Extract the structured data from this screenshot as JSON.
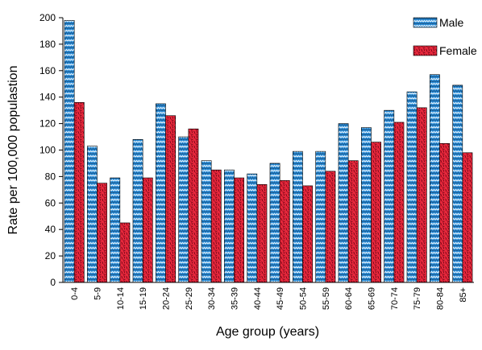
{
  "chart_data": {
    "type": "bar",
    "title": "",
    "xlabel": "Age group (years)",
    "ylabel": "Rate per 100,000 populastion",
    "ylim": [
      0,
      200
    ],
    "yticks": [
      0,
      20,
      40,
      60,
      80,
      100,
      120,
      140,
      160,
      180,
      200
    ],
    "grid": false,
    "legend_position": "top-right",
    "categories": [
      "0-4",
      "5-9",
      "10-14",
      "15-19",
      "20-24",
      "25-29",
      "30-34",
      "35-39",
      "40-44",
      "45-49",
      "50-54",
      "55-59",
      "60-64",
      "65-69",
      "70-74",
      "75-79",
      "80-84",
      "85+"
    ],
    "series": [
      {
        "name": "Male",
        "color": "#2f8fd8",
        "values": [
          198,
          103,
          79,
          108,
          135,
          110,
          92,
          85,
          82,
          90,
          99,
          99,
          120,
          117,
          130,
          144,
          157,
          149
        ]
      },
      {
        "name": "Female",
        "color": "#e8283c",
        "values": [
          136,
          75,
          45,
          79,
          126,
          116,
          85,
          79,
          74,
          77,
          73,
          84,
          92,
          106,
          121,
          132,
          105,
          98
        ]
      }
    ]
  }
}
